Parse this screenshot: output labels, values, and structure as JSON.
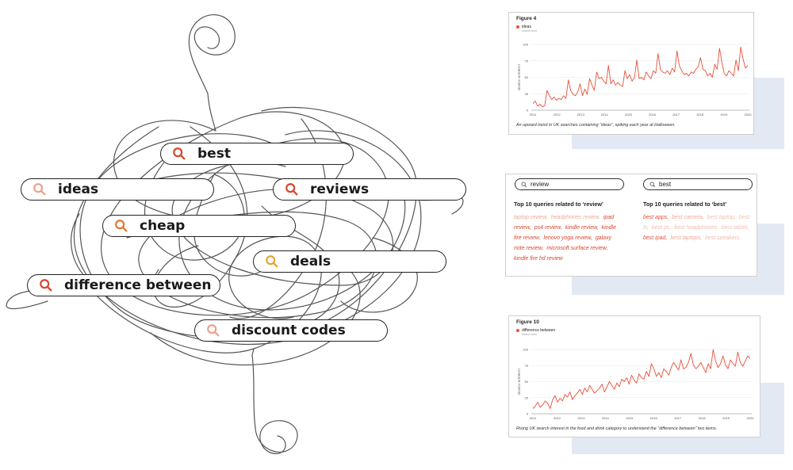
{
  "illustration": {
    "pills": [
      {
        "label": "best",
        "icon": "search-icon",
        "color": "#d9442c"
      },
      {
        "label": "ideas",
        "icon": "search-icon",
        "color": "#eaa38e"
      },
      {
        "label": "reviews",
        "icon": "search-icon",
        "color": "#d9442c"
      },
      {
        "label": "cheap",
        "icon": "search-icon",
        "color": "#e0762f"
      },
      {
        "label": "deals",
        "icon": "search-icon",
        "color": "#e8a23a"
      },
      {
        "label": "difference between",
        "icon": "search-icon",
        "color": "#d9442c"
      },
      {
        "label": "discount codes",
        "icon": "search-icon",
        "color": "#eaa38e"
      }
    ]
  },
  "figure4": {
    "title": "Figure 4",
    "legend": "ideas",
    "legend_sub": "Search term",
    "caption": "An upward trend in UK searches containing “ideas”, spiking each year at Halloween.",
    "chart_data": {
      "type": "line",
      "title": "Figure 4",
      "ylabel": "SEARCH INTEREST",
      "ylim": [
        0,
        100
      ],
      "yticks": [
        "0",
        "25",
        "50",
        "75",
        "100"
      ],
      "xticks": [
        "2011",
        "2012",
        "2013",
        "2014",
        "2015",
        "2016",
        "2017",
        "2018",
        "2019",
        "2020"
      ],
      "grid": true,
      "series": [
        {
          "name": "ideas",
          "color": "#e8503a",
          "values": [
            10,
            14,
            6,
            9,
            5,
            7,
            30,
            22,
            16,
            20,
            15,
            18,
            16,
            22,
            18,
            46,
            30,
            24,
            22,
            28,
            40,
            22,
            32,
            24,
            48,
            38,
            30,
            58,
            48,
            50,
            44,
            40,
            68,
            40,
            46,
            38,
            42,
            38,
            36,
            60,
            48,
            54,
            44,
            50,
            76,
            48,
            50,
            46,
            58,
            52,
            48,
            60,
            56,
            86,
            62,
            58,
            56,
            60,
            54,
            64,
            58,
            90,
            68,
            60,
            54,
            56,
            52,
            58,
            56,
            62,
            66,
            80,
            62,
            60,
            52,
            56,
            50,
            70,
            62,
            94,
            74,
            56,
            52,
            60,
            56,
            52,
            76,
            60,
            96,
            78,
            64,
            68
          ]
        }
      ]
    }
  },
  "queries": {
    "left_search": "review",
    "right_search": "best",
    "left_heading": "Top 10 queries related to ‘review’",
    "right_heading": "Top 10 queries related to ‘best’",
    "left_items": [
      {
        "text": "laptop review,",
        "color": "#f0a898"
      },
      {
        "text": "headphones review,",
        "color": "#f0a898"
      },
      {
        "text": "ipad review,",
        "color": "#d9442c"
      },
      {
        "text": "ps4 review,",
        "color": "#d9442c"
      },
      {
        "text": "kindle review,",
        "color": "#d9442c"
      },
      {
        "text": "kindle fire review,",
        "color": "#d9442c"
      },
      {
        "text": "lenovo yoga review,",
        "color": "#d9442c"
      },
      {
        "text": "galaxy note review,",
        "color": "#d9442c"
      },
      {
        "text": "microsoft surface review,",
        "color": "#d9442c"
      },
      {
        "text": "kindle fire hd review",
        "color": "#d9442c"
      }
    ],
    "right_items": [
      {
        "text": "best apps,",
        "color": "#e8503a"
      },
      {
        "text": "best camera,",
        "color": "#f0a898"
      },
      {
        "text": "best laptop,",
        "color": "#f4bcb0"
      },
      {
        "text": "best tv,",
        "color": "#f4bcb0"
      },
      {
        "text": "best pc,",
        "color": "#f4bcb0"
      },
      {
        "text": "best headphones,",
        "color": "#f4bcb0"
      },
      {
        "text": "best tablet,",
        "color": "#f4bcb0"
      },
      {
        "text": "best ipad,",
        "color": "#e8503a"
      },
      {
        "text": "best laptops,",
        "color": "#f0a898"
      },
      {
        "text": "best speakers",
        "color": "#f4bcb0"
      }
    ]
  },
  "figure10": {
    "title": "Figure 10",
    "legend": "difference between",
    "legend_sub": "Search term",
    "caption": "Rising UK search interest in the food and drink category to understand the “difference between” two items.",
    "chart_data": {
      "type": "line",
      "title": "Figure 10",
      "ylabel": "SEARCH INTEREST",
      "ylim": [
        0,
        100
      ],
      "yticks": [
        "0",
        "25",
        "50",
        "75",
        "100"
      ],
      "xticks": [
        "2011",
        "2012",
        "2013",
        "2014",
        "2015",
        "2016",
        "2017",
        "2018",
        "2019",
        "2020"
      ],
      "grid": true,
      "series": [
        {
          "name": "difference between",
          "color": "#e8503a",
          "values": [
            8,
            12,
            18,
            10,
            14,
            20,
            16,
            8,
            22,
            28,
            18,
            24,
            20,
            30,
            26,
            34,
            22,
            28,
            32,
            38,
            30,
            40,
            34,
            44,
            38,
            32,
            36,
            40,
            46,
            34,
            42,
            50,
            44,
            38,
            48,
            42,
            54,
            50,
            56,
            46,
            60,
            52,
            48,
            62,
            56,
            54,
            66,
            58,
            78,
            70,
            58,
            64,
            56,
            70,
            66,
            60,
            72,
            80,
            74,
            68,
            84,
            70,
            72,
            80,
            94,
            76,
            70,
            74,
            80,
            72,
            64,
            78,
            70,
            100,
            82,
            72,
            78,
            90,
            76,
            70,
            84,
            78,
            74,
            96,
            80,
            74,
            82,
            90,
            86
          ]
        }
      ]
    }
  }
}
